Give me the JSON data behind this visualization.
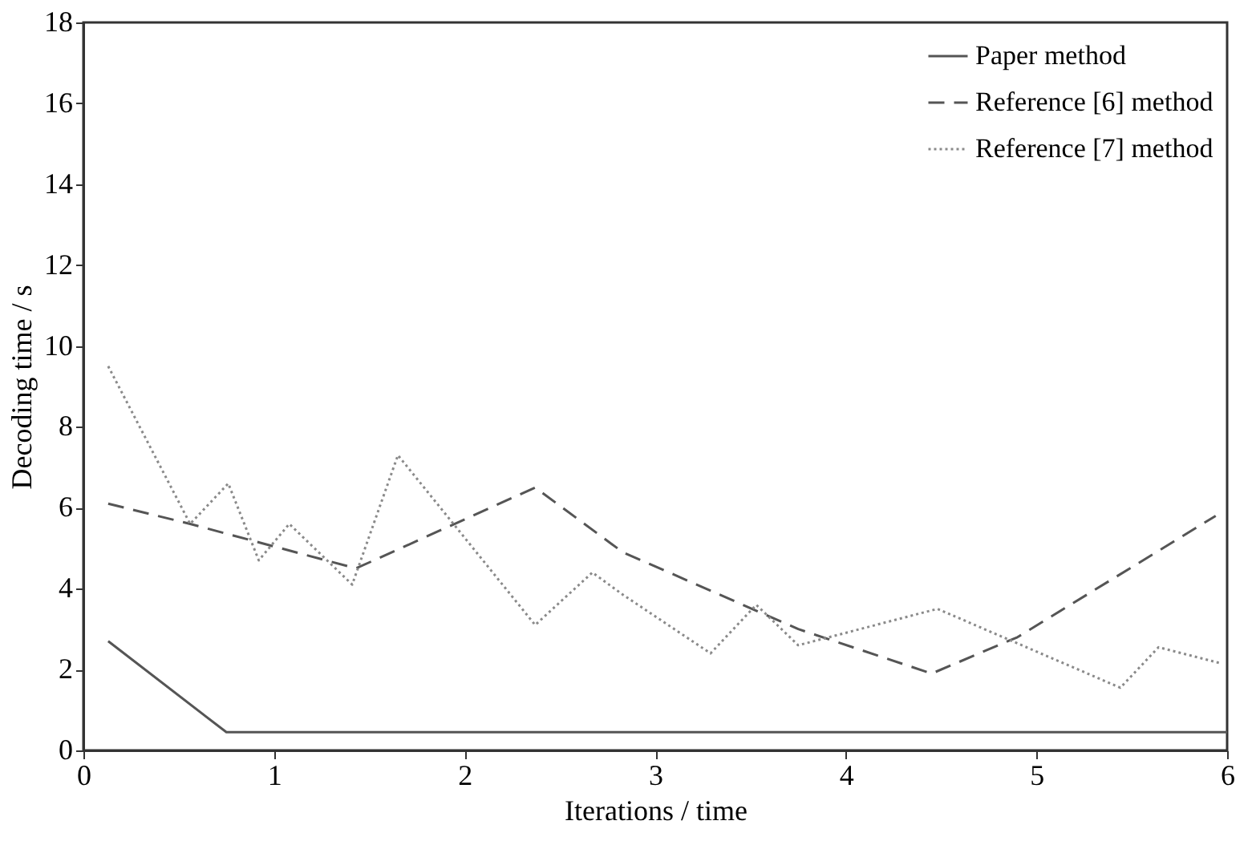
{
  "chart_data": {
    "type": "line",
    "xlabel": "Iterations / time",
    "ylabel": "Decoding time / s",
    "xlim": [
      0,
      6
    ],
    "xticks": [
      0,
      1,
      2,
      3,
      4,
      5,
      6
    ],
    "ylim": [
      0,
      18
    ],
    "yticks": [
      0,
      2,
      4,
      6,
      8,
      10,
      12,
      14,
      16,
      18
    ],
    "grid": false,
    "legend": "top right",
    "marker": "none",
    "series": [
      {
        "name": "Paper method",
        "color": "#555555",
        "line_style": "solid",
        "x": [
          0.13,
          0.75,
          6
        ],
        "values": [
          2.7,
          0.45,
          0.45
        ]
      },
      {
        "name": "Reference [6] method",
        "color": "#555555",
        "line_style": "dashed",
        "x": [
          0.13,
          0.56,
          1.43,
          2.37,
          2.83,
          3.75,
          4.45,
          4.9,
          5.94
        ],
        "values": [
          6.1,
          5.6,
          4.5,
          6.5,
          4.9,
          3.0,
          1.9,
          2.8,
          5.8
        ]
      },
      {
        "name": "Reference [7] method",
        "color": "#8a8a8a",
        "line_style": "dotted",
        "x": [
          0.13,
          0.56,
          0.76,
          0.92,
          1.08,
          1.41,
          1.65,
          2.37,
          2.67,
          2.83,
          3.29,
          3.53,
          3.75,
          4.48,
          5.44,
          5.64,
          5.97
        ],
        "values": [
          9.5,
          5.6,
          6.6,
          4.7,
          5.6,
          4.1,
          7.3,
          3.1,
          4.4,
          3.85,
          2.4,
          3.6,
          2.6,
          3.5,
          1.55,
          2.55,
          2.15
        ]
      }
    ]
  }
}
